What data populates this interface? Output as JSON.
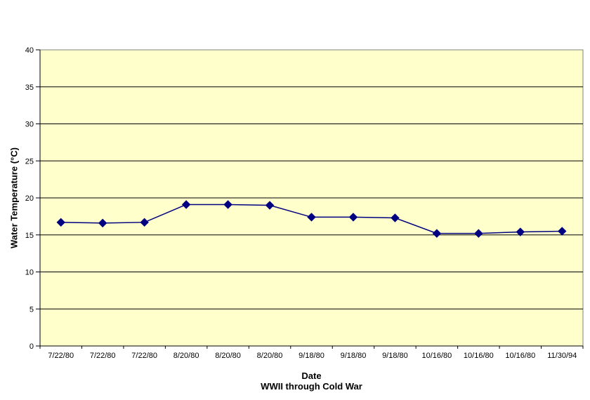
{
  "chart_data": {
    "type": "line",
    "title": "",
    "xlabel": "Date",
    "xlabel_sub": "WWII through Cold War",
    "ylabel": "Water Temperature (°C)",
    "categories": [
      "7/22/80",
      "7/22/80",
      "7/22/80",
      "8/20/80",
      "8/20/80",
      "8/20/80",
      "9/18/80",
      "9/18/80",
      "9/18/80",
      "10/16/80",
      "10/16/80",
      "10/16/80",
      "11/30/94"
    ],
    "series": [
      {
        "name": "Water Temperature",
        "values": [
          16.7,
          16.6,
          16.7,
          19.1,
          19.1,
          19.0,
          17.4,
          17.4,
          17.3,
          15.2,
          15.2,
          15.4,
          15.5
        ]
      }
    ],
    "ylim": [
      0,
      40
    ],
    "ytick_step": 5,
    "yticks": [
      0,
      5,
      10,
      15,
      20,
      25,
      30,
      35,
      40
    ],
    "grid": "horizontal-major",
    "legend": "none",
    "marker": "diamond",
    "colors": {
      "background": "#FFFFFF",
      "plot_bg": "#FFFFCC",
      "plot_border": "#808080",
      "gridline": "#000000",
      "axis": "#000000",
      "series": "#000080",
      "text": "#000000"
    }
  }
}
